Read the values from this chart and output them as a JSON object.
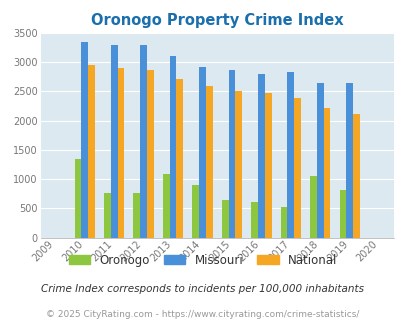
{
  "title": "Oronogo Property Crime Index",
  "years": [
    "2009",
    "2010",
    "2011",
    "2012",
    "2013",
    "2014",
    "2015",
    "2016",
    "2017",
    "2018",
    "2019",
    "2020"
  ],
  "oronogo": [
    null,
    1350,
    760,
    760,
    1090,
    900,
    650,
    610,
    530,
    1050,
    820,
    null
  ],
  "missouri": [
    null,
    3350,
    3300,
    3300,
    3110,
    2920,
    2870,
    2800,
    2840,
    2650,
    2650,
    null
  ],
  "national": [
    null,
    2960,
    2900,
    2870,
    2710,
    2600,
    2500,
    2480,
    2380,
    2210,
    2110,
    null
  ],
  "oronogo_color": "#8dc63f",
  "missouri_color": "#4a90d9",
  "national_color": "#f5a623",
  "bg_color": "#dce9f0",
  "ylim": [
    0,
    3500
  ],
  "yticks": [
    0,
    500,
    1000,
    1500,
    2000,
    2500,
    3000,
    3500
  ],
  "footnote1": "Crime Index corresponds to incidents per 100,000 inhabitants",
  "footnote2": "© 2025 CityRating.com - https://www.cityrating.com/crime-statistics/",
  "legend_labels": [
    "Oronogo",
    "Missouri",
    "National"
  ]
}
